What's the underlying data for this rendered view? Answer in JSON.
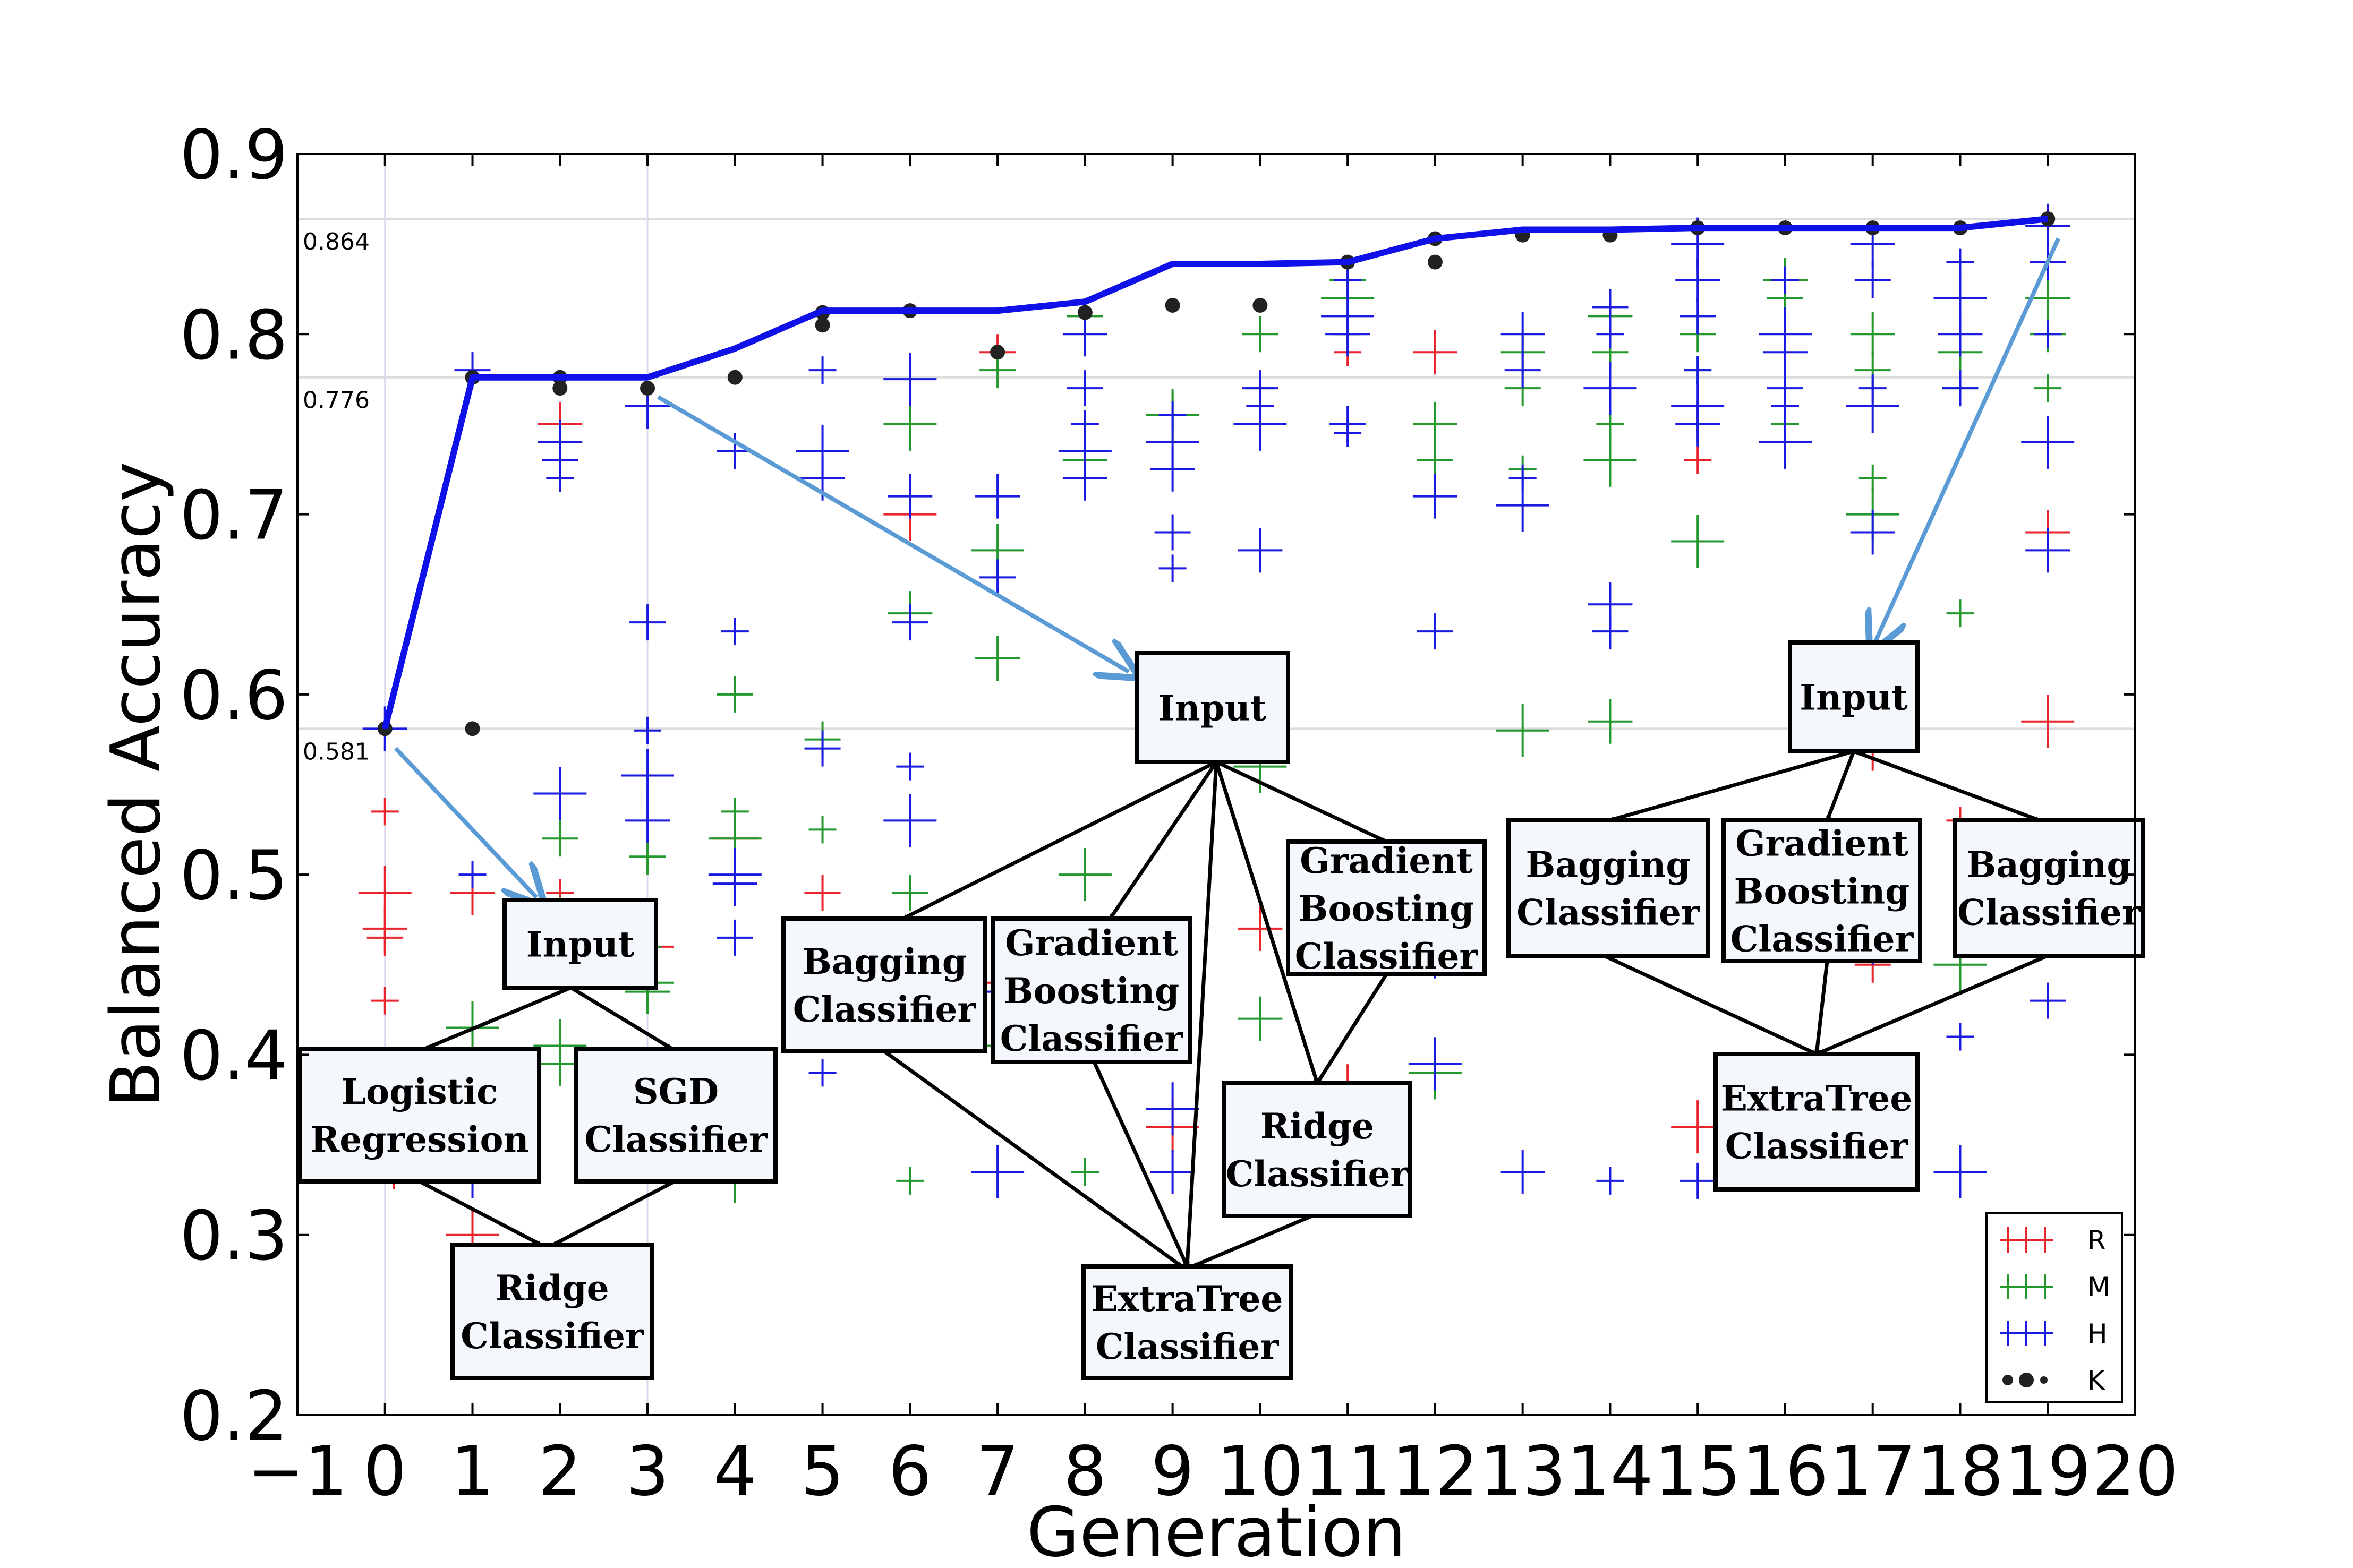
{
  "chart_data": {
    "type": "scatter",
    "xlabel": "Generation",
    "ylabel": "Balanced Accuracy",
    "xlim": [
      -1,
      20
    ],
    "ylim": [
      0.2,
      0.9
    ],
    "x_ticks": [
      "−1",
      "0",
      "1",
      "2",
      "3",
      "4",
      "5",
      "6",
      "7",
      "8",
      "9",
      "10",
      "11",
      "12",
      "13",
      "14",
      "15",
      "16",
      "17",
      "18",
      "19",
      "20"
    ],
    "y_ticks": [
      "0.2",
      "0.3",
      "0.4",
      "0.5",
      "0.6",
      "0.7",
      "0.8",
      "0.9"
    ],
    "reference_lines": [
      {
        "value": 0.864,
        "label": "0.864"
      },
      {
        "value": 0.776,
        "label": "0.776"
      },
      {
        "value": 0.581,
        "label": "0.581"
      }
    ],
    "best_line": {
      "color": "#1010e8",
      "x": [
        0,
        1,
        2,
        3,
        4,
        5,
        6,
        7,
        8,
        9,
        10,
        11,
        12,
        13,
        14,
        15,
        16,
        17,
        18,
        19
      ],
      "y": [
        0.581,
        0.776,
        0.776,
        0.776,
        0.792,
        0.813,
        0.813,
        0.813,
        0.818,
        0.839,
        0.839,
        0.84,
        0.853,
        0.858,
        0.858,
        0.859,
        0.859,
        0.859,
        0.859,
        0.864
      ]
    },
    "legend": {
      "position": "bottom-right",
      "entries": [
        "R",
        "M",
        "H",
        "K"
      ]
    },
    "series": [
      {
        "name": "R",
        "color": "#e8242c",
        "marker": "plus",
        "x": [
          0,
          0,
          0,
          0,
          0,
          0.1,
          1,
          1,
          1,
          1,
          2,
          2,
          2,
          3,
          4,
          5,
          5,
          6,
          6,
          7,
          7,
          9,
          10,
          10,
          11,
          11,
          12,
          15,
          15,
          15,
          17,
          17,
          18,
          19,
          19
        ],
        "y": [
          0.535,
          0.49,
          0.47,
          0.465,
          0.43,
          0.34,
          0.49,
          0.4,
          0.38,
          0.3,
          0.75,
          0.74,
          0.49,
          0.46,
          0.52,
          0.49,
          0.44,
          0.7,
          0.43,
          0.79,
          0.44,
          0.36,
          0.47,
          0.34,
          0.79,
          0.38,
          0.79,
          0.75,
          0.73,
          0.36,
          0.57,
          0.45,
          0.53,
          0.585,
          0.69
        ]
      },
      {
        "name": "M",
        "color": "#23982c",
        "marker": "plus",
        "x": [
          1,
          1,
          2,
          2,
          2,
          2,
          3,
          3,
          3,
          3,
          4,
          4,
          4,
          4,
          5,
          5,
          6,
          6,
          6,
          6,
          7,
          7,
          7,
          7,
          8,
          8,
          8,
          8,
          9,
          9,
          10,
          10,
          10,
          10,
          11,
          11,
          11,
          12,
          12,
          12,
          12,
          13,
          13,
          13,
          13,
          14,
          14,
          14,
          14,
          14,
          15,
          15,
          15,
          16,
          16,
          16,
          16,
          17,
          17,
          17,
          17,
          18,
          18,
          18,
          18,
          19,
          19,
          19
        ],
        "y": [
          0.415,
          0.4,
          0.52,
          0.48,
          0.405,
          0.395,
          0.51,
          0.46,
          0.44,
          0.435,
          0.6,
          0.535,
          0.52,
          0.33,
          0.575,
          0.525,
          0.75,
          0.645,
          0.49,
          0.33,
          0.68,
          0.62,
          0.78,
          0.405,
          0.5,
          0.73,
          0.81,
          0.335,
          0.755,
          0.755,
          0.8,
          0.77,
          0.56,
          0.42,
          0.83,
          0.8,
          0.82,
          0.75,
          0.73,
          0.51,
          0.39,
          0.79,
          0.77,
          0.725,
          0.58,
          0.81,
          0.79,
          0.75,
          0.73,
          0.585,
          0.8,
          0.78,
          0.685,
          0.83,
          0.82,
          0.75,
          0.74,
          0.8,
          0.78,
          0.72,
          0.7,
          0.79,
          0.77,
          0.645,
          0.45,
          0.82,
          0.8,
          0.77
        ]
      },
      {
        "name": "H",
        "color": "#1a1ae0",
        "marker": "plus",
        "x": [
          0,
          1,
          1,
          1,
          2,
          2,
          2,
          2,
          3,
          3,
          3,
          3,
          3,
          4,
          4,
          4,
          4,
          4,
          5,
          5,
          5,
          5,
          5,
          6,
          6,
          6,
          6,
          6,
          7,
          7,
          7,
          7,
          8,
          8,
          8,
          8,
          8,
          8,
          9,
          9,
          9,
          9,
          9,
          9,
          9,
          10,
          10,
          10,
          10,
          10,
          11,
          11,
          11,
          11,
          11,
          11,
          12,
          12,
          12,
          12,
          13,
          13,
          13,
          13,
          13,
          14,
          14,
          14,
          14,
          14,
          14,
          15,
          15,
          15,
          15,
          15,
          15,
          15,
          16,
          16,
          16,
          16,
          16,
          16,
          17,
          17,
          17,
          17,
          17,
          17,
          18,
          18,
          18,
          18,
          18,
          18,
          19,
          19,
          19,
          19,
          19,
          19
        ],
        "y": [
          0.581,
          0.78,
          0.5,
          0.335,
          0.74,
          0.73,
          0.72,
          0.545,
          0.76,
          0.64,
          0.58,
          0.555,
          0.53,
          0.735,
          0.635,
          0.5,
          0.495,
          0.465,
          0.78,
          0.735,
          0.72,
          0.57,
          0.39,
          0.775,
          0.71,
          0.64,
          0.56,
          0.53,
          0.71,
          0.665,
          0.435,
          0.335,
          0.8,
          0.77,
          0.75,
          0.735,
          0.72,
          0.46,
          0.755,
          0.74,
          0.725,
          0.69,
          0.67,
          0.37,
          0.335,
          0.77,
          0.76,
          0.75,
          0.68,
          0.355,
          0.83,
          0.81,
          0.8,
          0.75,
          0.745,
          0.34,
          0.71,
          0.635,
          0.45,
          0.395,
          0.8,
          0.78,
          0.72,
          0.705,
          0.335,
          0.815,
          0.8,
          0.77,
          0.65,
          0.635,
          0.33,
          0.85,
          0.83,
          0.81,
          0.78,
          0.76,
          0.75,
          0.33,
          0.83,
          0.8,
          0.79,
          0.77,
          0.76,
          0.74,
          0.85,
          0.83,
          0.77,
          0.76,
          0.69,
          0.46,
          0.84,
          0.82,
          0.8,
          0.77,
          0.41,
          0.335,
          0.86,
          0.84,
          0.8,
          0.74,
          0.68,
          0.43
        ]
      },
      {
        "name": "K",
        "color": "#222222",
        "marker": "dot",
        "x": [
          0,
          1,
          1,
          2,
          2,
          3,
          4,
          5,
          5,
          6,
          7,
          8,
          9,
          10,
          11,
          12,
          12,
          13,
          14,
          15,
          16,
          17,
          18,
          19
        ],
        "y": [
          0.581,
          0.776,
          0.581,
          0.776,
          0.77,
          0.77,
          0.776,
          0.805,
          0.812,
          0.813,
          0.79,
          0.812,
          0.816,
          0.816,
          0.84,
          0.853,
          0.84,
          0.855,
          0.855,
          0.859,
          0.859,
          0.859,
          0.859,
          0.864
        ]
      }
    ]
  },
  "pipelines": [
    {
      "anchor": {
        "x": 0,
        "y": 0.581
      },
      "boxes": [
        {
          "id": "p1-input",
          "lines": [
            "Input"
          ]
        },
        {
          "id": "p1-logistic",
          "lines": [
            "Logistic",
            "Regression"
          ]
        },
        {
          "id": "p1-sgd",
          "lines": [
            "SGD",
            "Classifier"
          ]
        },
        {
          "id": "p1-ridge",
          "lines": [
            "Ridge",
            "Classifier"
          ]
        }
      ]
    },
    {
      "anchor": {
        "x": 3,
        "y": 0.776
      },
      "boxes": [
        {
          "id": "p2-input",
          "lines": [
            "Input"
          ]
        },
        {
          "id": "p2-bagging",
          "lines": [
            "Bagging",
            "Classifier"
          ]
        },
        {
          "id": "p2-gradient",
          "lines": [
            "Gradient",
            "Boosting",
            "Classifier"
          ]
        },
        {
          "id": "p2-gradient2",
          "lines": [
            "Gradient",
            "Boosting",
            "Classifier"
          ]
        },
        {
          "id": "p2-ridge",
          "lines": [
            "Ridge",
            "Classifier"
          ]
        },
        {
          "id": "p2-extratree",
          "lines": [
            "ExtraTree",
            "Classifier"
          ]
        }
      ]
    },
    {
      "anchor": {
        "x": 19,
        "y": 0.864
      },
      "boxes": [
        {
          "id": "p3-input",
          "lines": [
            "Input"
          ]
        },
        {
          "id": "p3-bagging",
          "lines": [
            "Bagging",
            "Classifier"
          ]
        },
        {
          "id": "p3-gradient",
          "lines": [
            "Gradient",
            "Boosting",
            "Classifier"
          ]
        },
        {
          "id": "p3-bagging2",
          "lines": [
            "Bagging",
            "Classifier"
          ]
        },
        {
          "id": "p3-extratree",
          "lines": [
            "ExtraTree",
            "Classifier"
          ]
        }
      ]
    }
  ]
}
